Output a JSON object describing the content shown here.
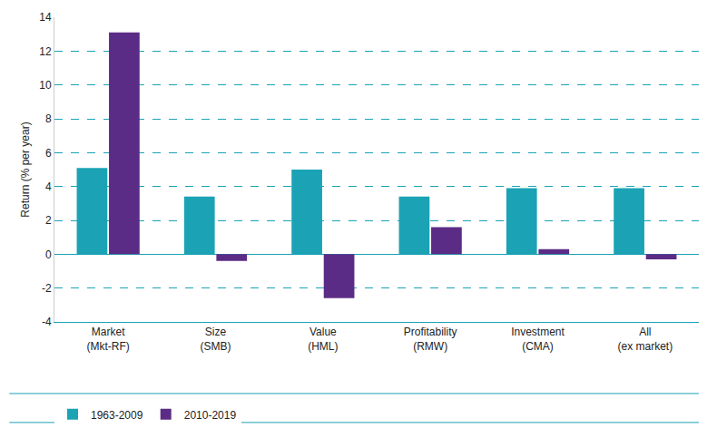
{
  "chart_data": {
    "type": "bar",
    "categories": [
      "Market\n(Mkt-RF)",
      "Size\n(SMB)",
      "Value\n(HML)",
      "Profitability\n(RMW)",
      "Investment\n(CMA)",
      "All\n(ex market)"
    ],
    "series": [
      {
        "name": "1963-2009",
        "color": "#1ba3b5",
        "values": [
          5.1,
          3.4,
          5.0,
          3.4,
          3.9,
          3.9
        ]
      },
      {
        "name": "2010-2019",
        "color": "#5b2c85",
        "values": [
          13.1,
          -0.4,
          -2.6,
          1.6,
          0.3,
          -0.3
        ]
      }
    ],
    "y_label": "Return (% per year)",
    "ylim": [
      -4,
      14
    ],
    "yticks": [
      -4,
      -2,
      0,
      2,
      4,
      6,
      8,
      10,
      12,
      14
    ],
    "grid": true,
    "legend": "bottom"
  }
}
